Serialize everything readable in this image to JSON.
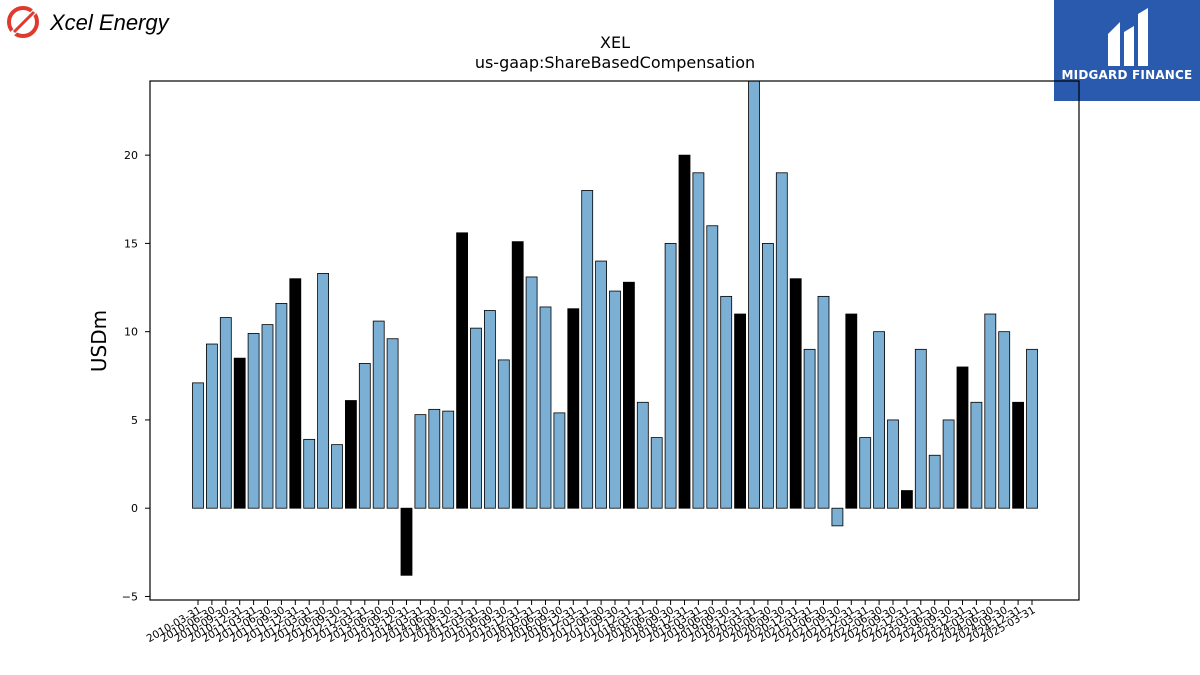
{
  "logo": {
    "company": "Xcel Energy",
    "color": "#e03a2f"
  },
  "brand": {
    "name": "MIDGARD FINANCE",
    "background": "#2a5aad"
  },
  "chart_data": {
    "type": "bar",
    "title": "XEL",
    "subtitle": "us-gaap:ShareBasedCompensation",
    "ylabel": "USDm",
    "xlabel": "",
    "ylim": [
      -5.2,
      24.2
    ],
    "yticks": [
      -5,
      0,
      5,
      10,
      15,
      20
    ],
    "grid": false,
    "colors": {
      "quarter": "#7bafd4",
      "annual": "#000000",
      "edge": "#000000"
    },
    "categories": [
      "2010-03-31",
      "2010-06-30",
      "2010-09-30",
      "2010-12-31",
      "2011-03-31",
      "2011-06-30",
      "2011-09-30",
      "2011-12-31",
      "2012-03-31",
      "2012-06-30",
      "2012-09-30",
      "2012-12-31",
      "2013-03-31",
      "2013-06-30",
      "2013-09-30",
      "2013-12-31",
      "2014-03-31",
      "2014-06-30",
      "2014-09-30",
      "2014-12-31",
      "2015-03-31",
      "2015-06-30",
      "2015-09-30",
      "2015-12-31",
      "2016-03-31",
      "2016-06-30",
      "2016-09-30",
      "2016-12-31",
      "2017-03-31",
      "2017-06-30",
      "2017-09-30",
      "2017-12-31",
      "2018-03-31",
      "2018-06-30",
      "2018-09-30",
      "2018-12-31",
      "2019-03-31",
      "2019-06-30",
      "2019-09-30",
      "2019-12-31",
      "2020-03-31",
      "2020-06-30",
      "2020-09-30",
      "2020-12-31",
      "2021-03-31",
      "2021-06-30",
      "2021-09-30",
      "2021-12-31",
      "2022-03-31",
      "2022-06-30",
      "2022-09-30",
      "2022-12-31",
      "2023-03-31",
      "2023-06-30",
      "2023-09-30",
      "2023-12-31",
      "2024-03-31",
      "2024-06-30",
      "2024-09-30",
      "2024-12-31",
      "2025-03-31"
    ],
    "values": [
      7.1,
      9.3,
      10.8,
      8.5,
      9.9,
      10.4,
      11.6,
      13.0,
      3.9,
      13.3,
      3.6,
      6.1,
      8.2,
      10.6,
      9.6,
      -3.8,
      5.3,
      5.6,
      5.5,
      15.6,
      10.2,
      11.2,
      8.4,
      15.1,
      13.1,
      11.4,
      5.4,
      11.3,
      18.0,
      14.0,
      12.3,
      12.8,
      6.0,
      4.0,
      15.0,
      20.0,
      19.0,
      16.0,
      12.0,
      11.0,
      24.5,
      15.0,
      19.0,
      13.0,
      9.0,
      12.0,
      -1.0,
      11.0,
      4.0,
      10.0,
      5.0,
      1.0,
      9.0,
      3.0,
      5.0,
      8.0,
      6.0,
      11.0,
      10.0,
      6.0,
      9.0
    ],
    "annual_flags": [
      0,
      0,
      0,
      1,
      0,
      0,
      0,
      1,
      0,
      0,
      0,
      1,
      0,
      0,
      0,
      1,
      0,
      0,
      0,
      1,
      0,
      0,
      0,
      1,
      0,
      0,
      0,
      1,
      0,
      0,
      0,
      1,
      0,
      0,
      0,
      1,
      0,
      0,
      0,
      1,
      0,
      0,
      0,
      1,
      0,
      0,
      0,
      1,
      0,
      0,
      0,
      1,
      0,
      0,
      0,
      1,
      0,
      0,
      0,
      1,
      0
    ]
  }
}
